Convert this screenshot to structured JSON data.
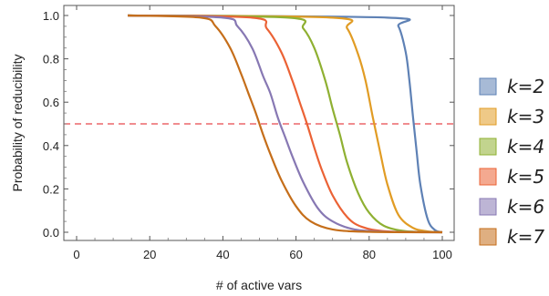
{
  "chart_data": {
    "type": "line",
    "title": "",
    "xlabel": "# of active vars",
    "ylabel": "Probability of reducibility",
    "xlim": [
      0,
      101
    ],
    "ylim": [
      0,
      1.03
    ],
    "xticks": [
      0,
      20,
      40,
      60,
      80,
      100
    ],
    "yticks": [
      0.0,
      0.2,
      0.4,
      0.6,
      0.8,
      1.0
    ],
    "x_tick_labels": [
      "0",
      "20",
      "40",
      "60",
      "80",
      "100"
    ],
    "y_tick_labels": [
      "0.0",
      "0.2",
      "0.4",
      "0.6",
      "0.8",
      "1.0"
    ],
    "grid": false,
    "legend_position": "right",
    "reference_line": {
      "y": 0.5,
      "style": "dashed",
      "color": "#e8474c"
    },
    "series": [
      {
        "name": "k=2",
        "color": "#5e81b5",
        "x": [
          14,
          85,
          88,
          90,
          91,
          92,
          93,
          94,
          96,
          98,
          100
        ],
        "y": [
          1.0,
          0.99,
          0.95,
          0.83,
          0.7,
          0.53,
          0.37,
          0.22,
          0.06,
          0.01,
          0.0
        ]
      },
      {
        "name": "k=3",
        "color": "#e19c24",
        "x": [
          14,
          70,
          74,
          77,
          79,
          81,
          83,
          85,
          88,
          92,
          96,
          100
        ],
        "y": [
          1.0,
          0.99,
          0.94,
          0.82,
          0.7,
          0.53,
          0.37,
          0.22,
          0.08,
          0.02,
          0.004,
          0.0
        ]
      },
      {
        "name": "k=4",
        "color": "#8fb032",
        "x": [
          14,
          58,
          62,
          65,
          68,
          70,
          72,
          74,
          77,
          80,
          84,
          90,
          100
        ],
        "y": [
          1.0,
          0.99,
          0.94,
          0.85,
          0.7,
          0.57,
          0.45,
          0.32,
          0.18,
          0.09,
          0.03,
          0.005,
          0.0
        ]
      },
      {
        "name": "k=5",
        "color": "#eb6235",
        "x": [
          14,
          48,
          52,
          56,
          59,
          61,
          63,
          65,
          67,
          70,
          74,
          78,
          85,
          100
        ],
        "y": [
          1.0,
          0.99,
          0.94,
          0.83,
          0.7,
          0.6,
          0.5,
          0.39,
          0.29,
          0.17,
          0.07,
          0.025,
          0.004,
          0.0
        ]
      },
      {
        "name": "k=6",
        "color": "#8778b3",
        "x": [
          14,
          40,
          44,
          48,
          51,
          53,
          55,
          57,
          59,
          62,
          66,
          70,
          76,
          85,
          100
        ],
        "y": [
          1.0,
          0.99,
          0.95,
          0.85,
          0.72,
          0.64,
          0.53,
          0.44,
          0.35,
          0.23,
          0.11,
          0.05,
          0.013,
          0.002,
          0.0
        ]
      },
      {
        "name": "k=7",
        "color": "#c56e1a",
        "x": [
          14,
          34,
          38,
          42,
          45,
          47,
          49,
          51,
          53,
          56,
          60,
          64,
          70,
          80,
          100
        ],
        "y": [
          1.0,
          0.99,
          0.95,
          0.85,
          0.73,
          0.64,
          0.55,
          0.45,
          0.36,
          0.24,
          0.12,
          0.05,
          0.013,
          0.002,
          0.0
        ]
      }
    ]
  }
}
